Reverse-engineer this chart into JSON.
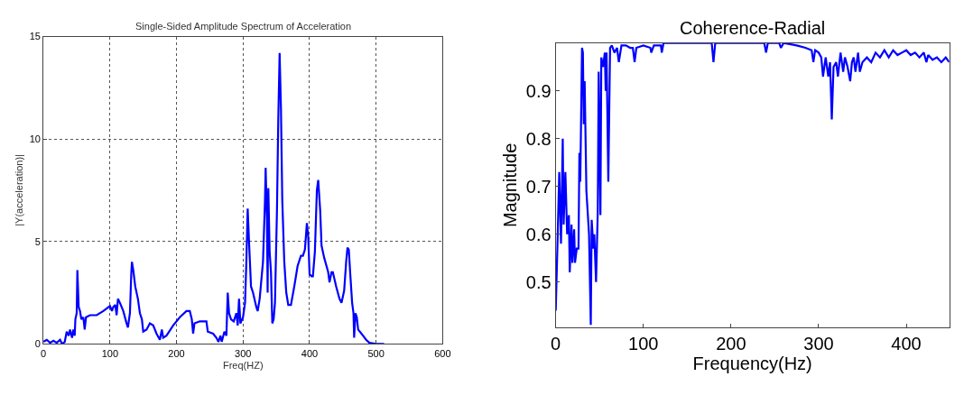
{
  "chart_data": [
    {
      "type": "line",
      "title": "Single-Sided Amplitude Spectrum of Acceleration",
      "xlabel": "Freq(HZ)",
      "ylabel": "|Y(acceleration)|",
      "xlim": [
        0,
        600
      ],
      "ylim": [
        0,
        15
      ],
      "xticks": [
        0,
        100,
        200,
        300,
        400,
        500,
        600
      ],
      "yticks": [
        0,
        5,
        10,
        15
      ],
      "grid": true,
      "line_style": "solid",
      "marker": "none",
      "series": [
        {
          "color": "#0000ff",
          "x": [
            0,
            5,
            10,
            15,
            20,
            25,
            28,
            32,
            35,
            38,
            40,
            43,
            45,
            47,
            48,
            50,
            51,
            53,
            55,
            57,
            60,
            62,
            64,
            70,
            80,
            90,
            100,
            103,
            105,
            108,
            110,
            112,
            115,
            120,
            125,
            127,
            130,
            132,
            133,
            135,
            138,
            142,
            145,
            148,
            150,
            155,
            160,
            165,
            170,
            175,
            178,
            180,
            185,
            195,
            205,
            215,
            220,
            223,
            225,
            227,
            235,
            245,
            247,
            255,
            260,
            263,
            266,
            268,
            272,
            275,
            277,
            279,
            282,
            286,
            290,
            292,
            294,
            296,
            300,
            303,
            305,
            307,
            309,
            312,
            315,
            320,
            322,
            325,
            330,
            333,
            334,
            336,
            337,
            338,
            340,
            342,
            344,
            346,
            348,
            351,
            353,
            355,
            357,
            359,
            362,
            365,
            368,
            372,
            377,
            382,
            387,
            390,
            393,
            396,
            398,
            400,
            403,
            405,
            408,
            411,
            413,
            416,
            418,
            422,
            428,
            430,
            433,
            435,
            440,
            445,
            448,
            452,
            455,
            457,
            459,
            461,
            464,
            466,
            467,
            469,
            471,
            473,
            478,
            485,
            490,
            500,
            512
          ],
          "values": [
            0.1,
            0.2,
            0.05,
            0.15,
            0.05,
            0.2,
            0,
            0.1,
            0.6,
            0.4,
            0.7,
            0.3,
            0.7,
            0.4,
            1.2,
            1.5,
            3.6,
            1.8,
            1.6,
            1.2,
            1.3,
            0.7,
            1.3,
            1.4,
            1.4,
            1.6,
            1.85,
            1.6,
            1.8,
            1.9,
            1.4,
            2.2,
            2.0,
            1.6,
            1.0,
            0.8,
            1.5,
            3.4,
            4.0,
            3.6,
            2.8,
            2.2,
            1.5,
            1.2,
            0.6,
            0.7,
            1.0,
            0.9,
            0.5,
            0.2,
            0.7,
            0.3,
            0.4,
            0.9,
            1.3,
            1.6,
            1.6,
            1.2,
            0.5,
            1.0,
            1.1,
            1.1,
            0.6,
            0.5,
            0.3,
            0.1,
            0.4,
            0.1,
            0.6,
            0.4,
            2.5,
            1.5,
            1.2,
            1.1,
            1.5,
            0.9,
            2.2,
            1.0,
            1.3,
            2.0,
            4.0,
            6.6,
            5.0,
            2.8,
            2.5,
            1.8,
            1.6,
            2.2,
            4.0,
            7.0,
            8.6,
            6.0,
            2.5,
            7.6,
            4.5,
            3.5,
            1.0,
            1.2,
            2.0,
            6.5,
            11.0,
            14.2,
            11.5,
            7.0,
            4.0,
            2.5,
            1.9,
            1.9,
            2.8,
            3.8,
            4.3,
            4.3,
            4.6,
            5.9,
            5.2,
            3.4,
            3.3,
            3.3,
            4.5,
            7.5,
            8.0,
            6.5,
            4.8,
            4.2,
            3.5,
            3.0,
            3.5,
            3.5,
            2.8,
            2.2,
            2.0,
            2.6,
            4.0,
            4.7,
            4.6,
            3.5,
            2.0,
            1.5,
            0.3,
            1.5,
            1.3,
            0.7,
            0.5,
            0.2,
            0.05,
            0,
            0
          ]
        }
      ]
    },
    {
      "type": "line",
      "title": "Coherence-Radial",
      "xlabel": "Frequency(Hz)",
      "ylabel": "Magnitude",
      "xlim": [
        0,
        449
      ],
      "ylim": [
        0.405,
        1.0
      ],
      "xticks": [
        0,
        100,
        200,
        300,
        400
      ],
      "yticks": [
        0.5,
        0.6,
        0.7,
        0.8,
        0.9
      ],
      "line_style": "solid",
      "marker": "none",
      "series": [
        {
          "color": "#0000ff",
          "x": [
            0,
            2,
            4,
            6,
            8,
            9,
            11,
            13,
            15,
            16,
            18,
            19,
            21,
            22,
            24,
            26,
            27,
            28,
            30,
            31,
            32,
            33,
            35,
            37,
            38,
            40,
            41,
            43,
            44,
            46,
            48,
            49,
            51,
            52,
            54,
            56,
            57,
            58,
            60,
            62,
            64,
            67,
            70,
            72,
            75,
            80,
            85,
            88,
            90,
            92,
            100,
            108,
            109,
            112,
            120,
            121,
            123,
            150,
            178,
            180,
            182,
            238,
            240,
            242,
            255,
            257,
            260,
            275,
            285,
            292,
            294,
            296,
            300,
            303,
            305,
            308,
            311,
            313,
            315,
            317,
            320,
            322,
            325,
            328,
            330,
            333,
            336,
            338,
            340,
            342,
            345,
            347,
            350,
            355,
            360,
            365,
            370,
            375,
            380,
            385,
            390,
            395,
            400,
            405,
            410,
            415,
            420,
            423,
            425,
            430,
            435,
            440,
            445,
            449
          ],
          "values": [
            0.44,
            0.58,
            0.73,
            0.58,
            0.8,
            0.62,
            0.73,
            0.6,
            0.64,
            0.52,
            0.62,
            0.54,
            0.61,
            0.54,
            0.57,
            0.57,
            0.77,
            0.71,
            0.99,
            0.98,
            0.83,
            0.92,
            0.69,
            0.63,
            0.6,
            0.41,
            0.63,
            0.57,
            0.6,
            0.5,
            0.65,
            0.94,
            0.64,
            0.97,
            0.95,
            0.98,
            0.9,
            0.98,
            0.71,
            0.99,
            0.995,
            0.98,
            0.99,
            0.96,
            0.995,
            0.995,
            0.99,
            0.99,
            0.96,
            0.99,
            0.995,
            0.99,
            0.98,
            0.995,
            0.995,
            0.98,
            1.0,
            1.0,
            1.0,
            0.96,
            1.0,
            1.0,
            0.98,
            1.0,
            1.0,
            0.99,
            1.0,
            0.995,
            0.99,
            0.985,
            0.96,
            0.985,
            0.98,
            0.97,
            0.93,
            0.97,
            0.93,
            0.96,
            0.84,
            0.95,
            0.96,
            0.93,
            0.98,
            0.94,
            0.97,
            0.95,
            0.92,
            0.96,
            0.97,
            0.94,
            0.98,
            0.94,
            0.96,
            0.97,
            0.96,
            0.98,
            0.97,
            0.985,
            0.97,
            0.985,
            0.975,
            0.98,
            0.985,
            0.975,
            0.98,
            0.97,
            0.98,
            0.96,
            0.975,
            0.965,
            0.97,
            0.96,
            0.97,
            0.96
          ]
        }
      ]
    }
  ]
}
